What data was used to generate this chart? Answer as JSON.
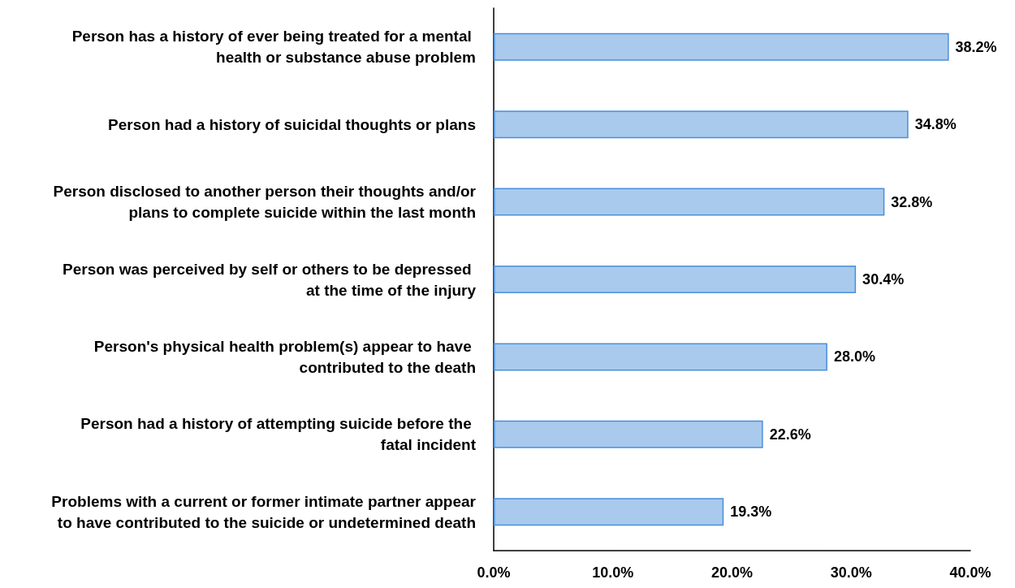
{
  "chart_data": {
    "type": "bar",
    "orientation": "horizontal",
    "categories": [
      "Person has a history of ever being treated for a mental health or substance abuse problem",
      "Person had a history of suicidal thoughts or plans",
      "Person disclosed to another person their thoughts and/or plans to complete suicide within the last month",
      "Person was perceived by self or others to be depressed at the time of the injury",
      "Person's physical health problem(s) appear to have contributed to the death",
      "Person had a history of attempting suicide before the fatal incident",
      "Problems with a current or former intimate partner appear to have contributed to the suicide or undetermined death"
    ],
    "values": [
      38.2,
      34.8,
      32.8,
      30.4,
      28.0,
      22.6,
      19.3
    ],
    "color": "#a9caec",
    "value_labels": [
      "38.2%",
      "34.8%",
      "32.8%",
      "30.4%",
      "28.0%",
      "22.6%",
      "19.3%"
    ],
    "xlim": [
      0,
      40
    ],
    "xticks": [
      {
        "value": 0,
        "label": "0.0%"
      },
      {
        "value": 10,
        "label": "10.0%"
      },
      {
        "value": 20,
        "label": "20.0%"
      },
      {
        "value": 30,
        "label": "30.0%"
      },
      {
        "value": 40,
        "label": "40.0%"
      }
    ],
    "grid": false
  }
}
